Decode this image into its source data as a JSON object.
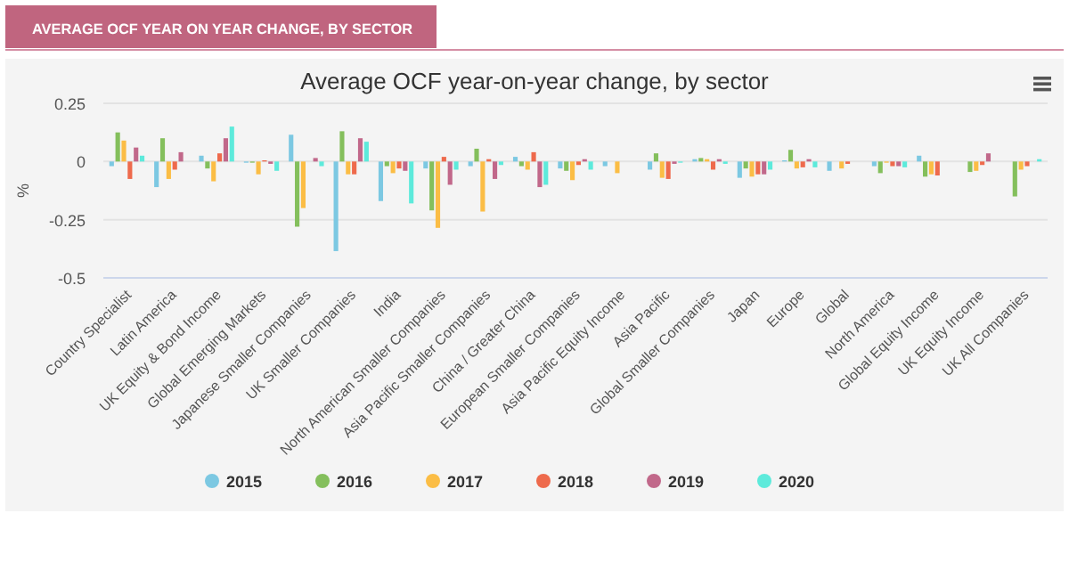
{
  "chart_data": {
    "type": "bar",
    "title": "Average OCF year-on-year change, by sector",
    "subtitle": "AVERAGE OCF YEAR ON YEAR CHANGE, BY SECTOR",
    "ylabel": "%",
    "categories": [
      "Country Specialist",
      "Latin America",
      "UK Equity & Bond Income",
      "Global Emerging Markets",
      "Japanese Smaller Companies",
      "UK Smaller Companies",
      "India",
      "North American Smaller Companies",
      "Asia Pacific Smaller Companies",
      "China / Greater China",
      "European Smaller Companies",
      "Asia Pacific Equity Income",
      "Asia Pacific",
      "Global Smaller Companies",
      "Japan",
      "Europe",
      "Global",
      "North America",
      "Global Equity Income",
      "UK Equity Income",
      "UK All Companies"
    ],
    "series": [
      {
        "name": "2015",
        "color": "#7cc8e2",
        "values": [
          -0.02,
          -0.11,
          0.025,
          -0.005,
          0.115,
          -0.385,
          -0.17,
          -0.03,
          -0.02,
          0.02,
          -0.03,
          -0.02,
          -0.035,
          0.01,
          -0.07,
          0.005,
          -0.04,
          -0.02,
          0.025,
          0,
          0
        ]
      },
      {
        "name": "2016",
        "color": "#84bf5c",
        "values": [
          0.125,
          0.1,
          -0.03,
          -0.005,
          -0.28,
          0.13,
          -0.02,
          -0.21,
          0.055,
          -0.02,
          -0.04,
          0,
          0.035,
          0.015,
          -0.03,
          0.05,
          0,
          -0.05,
          -0.065,
          -0.045,
          -0.15
        ]
      },
      {
        "name": "2017",
        "color": "#fbbd45",
        "values": [
          0.09,
          -0.075,
          -0.085,
          -0.055,
          -0.2,
          -0.055,
          -0.05,
          -0.285,
          -0.215,
          -0.035,
          -0.08,
          -0.05,
          -0.07,
          0.01,
          -0.065,
          -0.03,
          -0.03,
          -0.005,
          -0.055,
          -0.04,
          -0.035
        ]
      },
      {
        "name": "2018",
        "color": "#ee6a4c",
        "values": [
          -0.075,
          -0.035,
          0.035,
          0.005,
          0,
          -0.055,
          -0.03,
          0.02,
          0.01,
          0.04,
          -0.015,
          0,
          -0.075,
          -0.035,
          -0.055,
          -0.025,
          -0.01,
          -0.02,
          -0.06,
          -0.015,
          -0.02
        ]
      },
      {
        "name": "2019",
        "color": "#c1688a",
        "values": [
          0.06,
          0.04,
          0.1,
          -0.01,
          0.015,
          0.1,
          -0.04,
          -0.1,
          -0.075,
          -0.11,
          0.01,
          0,
          -0.01,
          0.01,
          -0.055,
          0.01,
          0,
          -0.02,
          0,
          0.035,
          0
        ]
      },
      {
        "name": "2020",
        "color": "#5deadb",
        "values": [
          0.025,
          0,
          0.15,
          -0.04,
          -0.02,
          0.085,
          -0.18,
          -0.035,
          -0.015,
          -0.1,
          -0.035,
          0,
          -0.005,
          -0.01,
          -0.035,
          -0.025,
          0,
          -0.025,
          0,
          0,
          0.01
        ]
      }
    ],
    "ylim": [
      -0.5,
      0.25
    ],
    "yticks": [
      -0.5,
      -0.25,
      0,
      0.25
    ],
    "grid": "y",
    "legend": "bottom"
  }
}
